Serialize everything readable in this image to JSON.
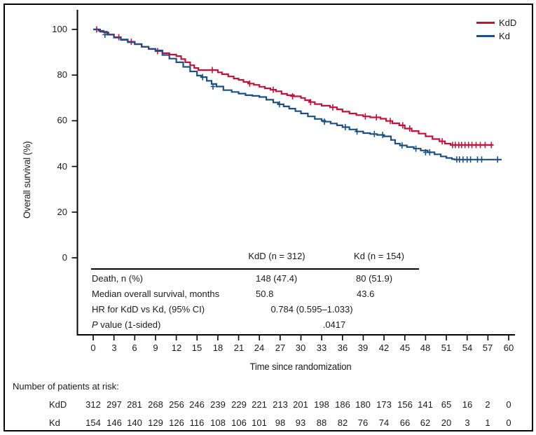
{
  "chart_data": {
    "type": "line",
    "subtype": "kaplan-meier-step",
    "title": "",
    "xlabel": "Time since randomization",
    "ylabel": "Overall survival (%)",
    "xlim": [
      0,
      60
    ],
    "ylim": [
      0,
      100
    ],
    "x_ticks": [
      0,
      3,
      6,
      9,
      12,
      15,
      18,
      21,
      24,
      27,
      30,
      33,
      36,
      39,
      42,
      45,
      48,
      51,
      54,
      57,
      60
    ],
    "y_ticks": [
      0,
      20,
      40,
      60,
      80,
      100
    ],
    "grid": false,
    "legend_position": "top-right",
    "series": [
      {
        "name": "KdD",
        "color": "#c5113a",
        "points": [
          [
            0,
            100
          ],
          [
            0.8,
            99.4
          ],
          [
            1.5,
            98.7
          ],
          [
            2.2,
            97.8
          ],
          [
            3,
            96.6
          ],
          [
            4,
            95.6
          ],
          [
            5,
            94.6
          ],
          [
            6,
            93.6
          ],
          [
            7,
            92.4
          ],
          [
            8,
            91.4
          ],
          [
            9,
            90.5
          ],
          [
            10,
            89.6
          ],
          [
            11,
            89
          ],
          [
            12,
            88.3
          ],
          [
            12.7,
            87
          ],
          [
            13.3,
            85.6
          ],
          [
            14,
            84.3
          ],
          [
            14.6,
            83.1
          ],
          [
            15.2,
            82.2
          ],
          [
            18,
            81.2
          ],
          [
            18.6,
            80.4
          ],
          [
            19.5,
            79.4
          ],
          [
            20.3,
            78.5
          ],
          [
            21,
            77.9
          ],
          [
            21.7,
            77
          ],
          [
            22.4,
            76.3
          ],
          [
            23.2,
            75.7
          ],
          [
            24,
            74.9
          ],
          [
            24.8,
            74.2
          ],
          [
            25.6,
            73.6
          ],
          [
            26.4,
            72.9
          ],
          [
            27.2,
            71.8
          ],
          [
            28,
            71.2
          ],
          [
            29,
            70.7
          ],
          [
            30,
            70
          ],
          [
            30.6,
            69
          ],
          [
            31.2,
            68.2
          ],
          [
            32,
            67.3
          ],
          [
            33,
            66.6
          ],
          [
            34.2,
            65.9
          ],
          [
            35.2,
            65
          ],
          [
            36,
            64
          ],
          [
            37,
            63.2
          ],
          [
            38,
            62.5
          ],
          [
            39,
            61.9
          ],
          [
            40,
            61.5
          ],
          [
            41.5,
            60.9
          ],
          [
            42.3,
            59.9
          ],
          [
            43.2,
            58.9
          ],
          [
            44.2,
            58
          ],
          [
            45,
            56.6
          ],
          [
            46,
            55.5
          ],
          [
            47,
            54.4
          ],
          [
            48,
            53.2
          ],
          [
            49,
            52
          ],
          [
            50,
            51
          ],
          [
            50.8,
            50
          ],
          [
            51.6,
            49.4
          ],
          [
            57.7,
            49.4
          ]
        ],
        "censors": [
          [
            0.5,
            100
          ],
          [
            3.7,
            96.6
          ],
          [
            5.5,
            94.6
          ],
          [
            9.3,
            90.5
          ],
          [
            17.2,
            82.2
          ],
          [
            22.6,
            76.3
          ],
          [
            26,
            73.6
          ],
          [
            28.8,
            70.7
          ],
          [
            31.4,
            68.2
          ],
          [
            34.6,
            65.9
          ],
          [
            39.3,
            61.9
          ],
          [
            40.9,
            61.5
          ],
          [
            42.9,
            59.9
          ],
          [
            44.7,
            58
          ],
          [
            45.7,
            56.6
          ],
          [
            50.4,
            51
          ],
          [
            51.9,
            49.4
          ],
          [
            52.3,
            49.4
          ],
          [
            52.8,
            49.4
          ],
          [
            53.2,
            49.4
          ],
          [
            53.7,
            49.4
          ],
          [
            54.2,
            49.4
          ],
          [
            54.7,
            49.4
          ],
          [
            55.3,
            49.4
          ],
          [
            55.9,
            49.4
          ],
          [
            56.6,
            49.4
          ],
          [
            57.5,
            49.4
          ]
        ]
      },
      {
        "name": "Kd",
        "color": "#1c5083",
        "points": [
          [
            0,
            100
          ],
          [
            1,
            99
          ],
          [
            2,
            97.7
          ],
          [
            3,
            96.4
          ],
          [
            4,
            95.4
          ],
          [
            5,
            94.4
          ],
          [
            6,
            93.5
          ],
          [
            7,
            92.4
          ],
          [
            8,
            91.5
          ],
          [
            9,
            90.8
          ],
          [
            10,
            88.8
          ],
          [
            11,
            87.2
          ],
          [
            12,
            85.6
          ],
          [
            13,
            83.6
          ],
          [
            14,
            81.6
          ],
          [
            15,
            79.8
          ],
          [
            15.6,
            79.1
          ],
          [
            16.4,
            77.5
          ],
          [
            17.1,
            76.1
          ],
          [
            17.8,
            75
          ],
          [
            18.8,
            73.4
          ],
          [
            20,
            72.6
          ],
          [
            21,
            71.9
          ],
          [
            22,
            71.2
          ],
          [
            23,
            70.9
          ],
          [
            24,
            70.4
          ],
          [
            25,
            69.2
          ],
          [
            26,
            68
          ],
          [
            26.7,
            67.2
          ],
          [
            27.5,
            66.3
          ],
          [
            28.3,
            65.3
          ],
          [
            29.2,
            64.2
          ],
          [
            30,
            63.2
          ],
          [
            31,
            61.9
          ],
          [
            32,
            60.8
          ],
          [
            33,
            60
          ],
          [
            33.5,
            59.6
          ],
          [
            34.3,
            58.8
          ],
          [
            35.2,
            58
          ],
          [
            36,
            57.2
          ],
          [
            37,
            56.2
          ],
          [
            38,
            55.3
          ],
          [
            39,
            54.6
          ],
          [
            40,
            54.2
          ],
          [
            41,
            53.8
          ],
          [
            42,
            53.2
          ],
          [
            43,
            51.6
          ],
          [
            43.6,
            50
          ],
          [
            44.3,
            49.2
          ],
          [
            45.3,
            48.5
          ],
          [
            46.3,
            47.8
          ],
          [
            47.3,
            47
          ],
          [
            48.3,
            46.2
          ],
          [
            49.3,
            45.3
          ],
          [
            50.2,
            44.4
          ],
          [
            51,
            43.7
          ],
          [
            51.8,
            43.2
          ],
          [
            52.2,
            43
          ],
          [
            59,
            43
          ]
        ],
        "censors": [
          [
            1.7,
            97.7
          ],
          [
            15.8,
            79.1
          ],
          [
            17.3,
            75
          ],
          [
            26.9,
            67.2
          ],
          [
            33.4,
            59.6
          ],
          [
            36.4,
            57.2
          ],
          [
            38.1,
            55.3
          ],
          [
            40.6,
            54.2
          ],
          [
            41.8,
            53.8
          ],
          [
            44.6,
            49.2
          ],
          [
            46.6,
            47.8
          ],
          [
            48,
            46.2
          ],
          [
            48.6,
            46.2
          ],
          [
            52.5,
            43
          ],
          [
            52.9,
            43
          ],
          [
            53.4,
            43
          ],
          [
            54,
            43
          ],
          [
            54.5,
            43
          ],
          [
            55.5,
            43
          ],
          [
            56.1,
            43
          ],
          [
            58.4,
            43
          ]
        ]
      }
    ]
  },
  "stats_table": {
    "header": {
      "col1": "KdD (n = 312)",
      "col2": "Kd (n = 154)"
    },
    "rows": {
      "death": {
        "label": "Death, n (%)",
        "kdd": "148 (47.4)",
        "kd": "80 (51.9)"
      },
      "median": {
        "label": "Median overall survival, months",
        "kdd": "50.8",
        "kd": "43.6"
      },
      "hr": {
        "label": "HR for KdD vs Kd, (95% CI)",
        "value": "0.784 (0.595–1.033)"
      },
      "pvalue": {
        "label_p": "P",
        "label_rest": " value (1-sided)",
        "value": ".0417"
      }
    }
  },
  "at_risk": {
    "title": "Number of patients at risk:",
    "rows": [
      {
        "label": "KdD",
        "values": [
          "312",
          "297",
          "281",
          "268",
          "256",
          "246",
          "239",
          "229",
          "221",
          "213",
          "201",
          "198",
          "186",
          "180",
          "173",
          "156",
          "141",
          "65",
          "16",
          "2",
          "0"
        ]
      },
      {
        "label": "Kd",
        "values": [
          "154",
          "146",
          "140",
          "129",
          "126",
          "116",
          "108",
          "106",
          "101",
          "98",
          "93",
          "88",
          "82",
          "76",
          "74",
          "66",
          "62",
          "20",
          "3",
          "1",
          "0"
        ]
      }
    ]
  }
}
